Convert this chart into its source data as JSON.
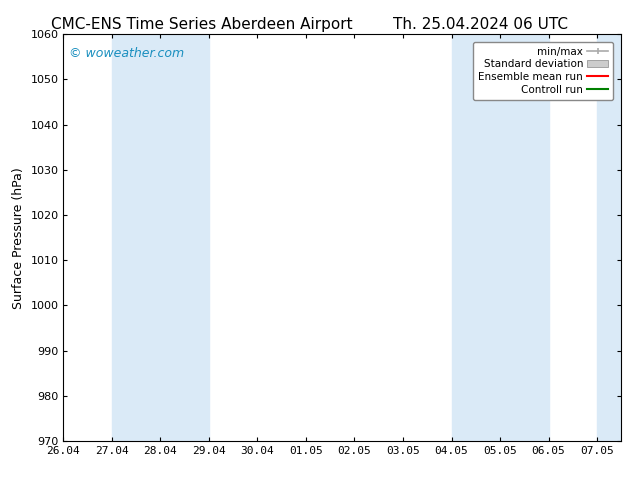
{
  "title_left": "CMC-ENS Time Series Aberdeen Airport",
  "title_right": "Th. 25.04.2024 06 UTC",
  "ylabel": "Surface Pressure (hPa)",
  "ylim": [
    970,
    1060
  ],
  "yticks": [
    970,
    980,
    990,
    1000,
    1010,
    1020,
    1030,
    1040,
    1050,
    1060
  ],
  "xtick_labels": [
    "26.04",
    "27.04",
    "28.04",
    "29.04",
    "30.04",
    "01.05",
    "02.05",
    "03.05",
    "04.05",
    "05.05",
    "06.05",
    "07.05"
  ],
  "xtick_positions": [
    0,
    1,
    2,
    3,
    4,
    5,
    6,
    7,
    8,
    9,
    10,
    11
  ],
  "shaded_bands": [
    {
      "xstart": 1,
      "xend": 3,
      "color": "#daeaf7"
    },
    {
      "xstart": 8,
      "xend": 9,
      "color": "#daeaf7"
    },
    {
      "xstart": 9,
      "xend": 10,
      "color": "#daeaf7"
    },
    {
      "xstart": 11,
      "xend": 11.5,
      "color": "#daeaf7"
    }
  ],
  "watermark": "© woweather.com",
  "watermark_color": "#1a8fbf",
  "background_color": "#ffffff",
  "legend_items": [
    {
      "label": "min/max",
      "color": "#aaaaaa",
      "style": "minmax"
    },
    {
      "label": "Standard deviation",
      "color": "#cccccc",
      "style": "std"
    },
    {
      "label": "Ensemble mean run",
      "color": "#ff0000",
      "style": "line"
    },
    {
      "label": "Controll run",
      "color": "#008000",
      "style": "line"
    }
  ],
  "title_fontsize": 11,
  "axis_label_fontsize": 9,
  "tick_fontsize": 8,
  "legend_fontsize": 7.5,
  "figsize": [
    6.34,
    4.9
  ],
  "dpi": 100
}
